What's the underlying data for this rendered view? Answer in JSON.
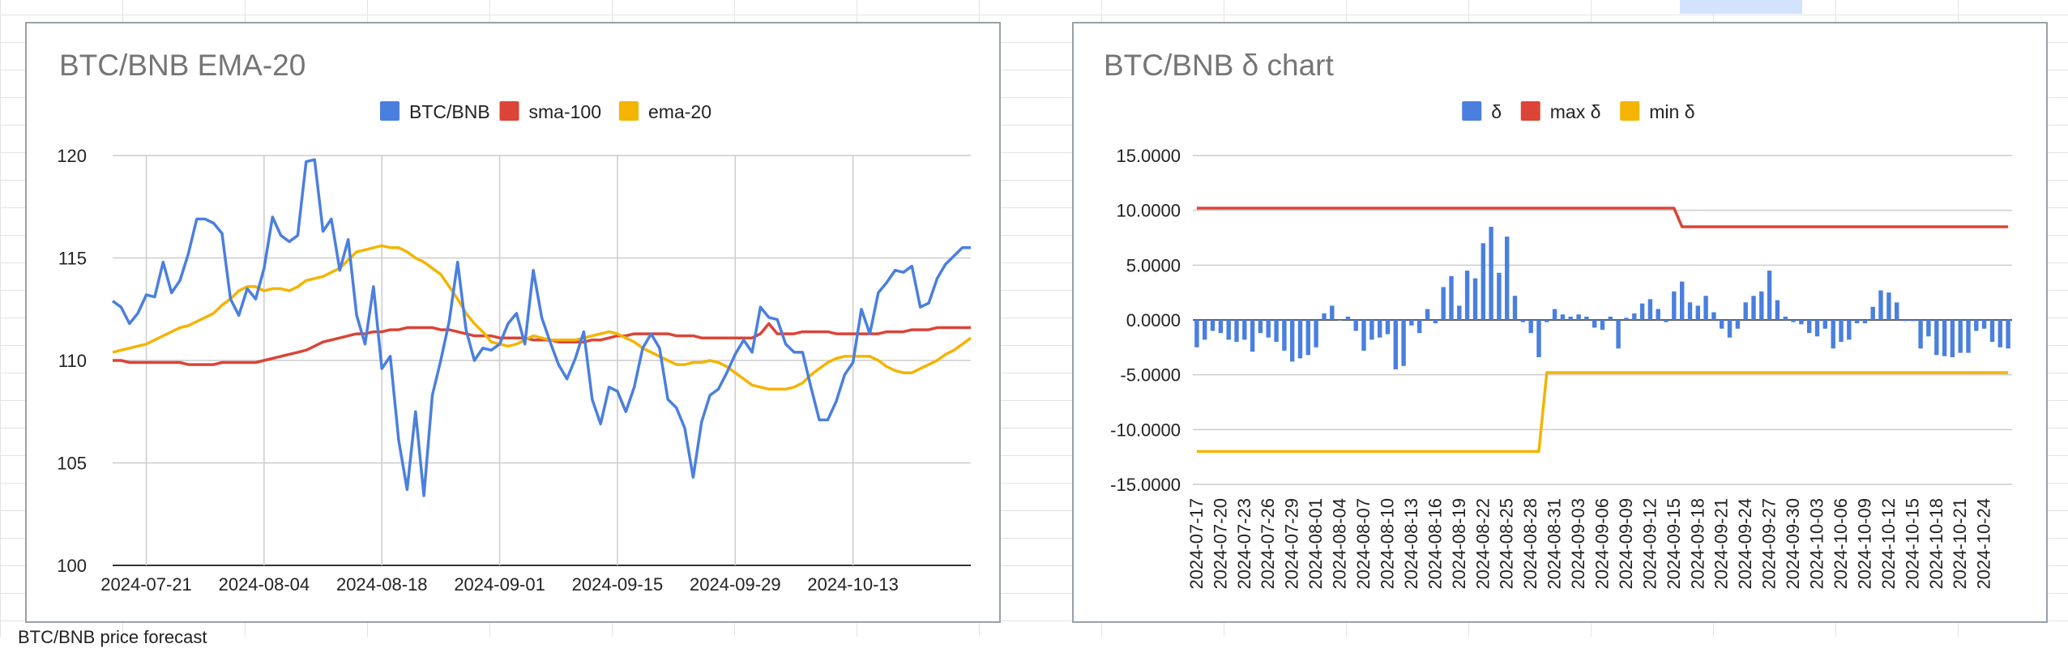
{
  "chart_data": [
    {
      "type": "line",
      "title": "BTC/BNB EMA-20",
      "xlabel": "",
      "ylabel": "",
      "ylim": [
        100,
        120
      ],
      "yticks": [
        "100",
        "105",
        "110",
        "115",
        "120"
      ],
      "x_tick_labels": [
        "2024-07-21",
        "2024-08-04",
        "2024-08-18",
        "2024-09-01",
        "2024-09-15",
        "2024-09-29",
        "2024-10-13"
      ],
      "x": [
        "2024-07-17",
        "2024-07-18",
        "2024-07-19",
        "2024-07-20",
        "2024-07-21",
        "2024-07-22",
        "2024-07-23",
        "2024-07-24",
        "2024-07-25",
        "2024-07-26",
        "2024-07-27",
        "2024-07-28",
        "2024-07-29",
        "2024-07-30",
        "2024-07-31",
        "2024-08-01",
        "2024-08-02",
        "2024-08-03",
        "2024-08-04",
        "2024-08-05",
        "2024-08-06",
        "2024-08-07",
        "2024-08-08",
        "2024-08-09",
        "2024-08-10",
        "2024-08-11",
        "2024-08-12",
        "2024-08-13",
        "2024-08-14",
        "2024-08-15",
        "2024-08-16",
        "2024-08-17",
        "2024-08-18",
        "2024-08-19",
        "2024-08-20",
        "2024-08-21",
        "2024-08-22",
        "2024-08-23",
        "2024-08-24",
        "2024-08-25",
        "2024-08-26",
        "2024-08-27",
        "2024-08-28",
        "2024-08-29",
        "2024-08-30",
        "2024-08-31",
        "2024-09-01",
        "2024-09-02",
        "2024-09-03",
        "2024-09-04",
        "2024-09-05",
        "2024-09-06",
        "2024-09-07",
        "2024-09-08",
        "2024-09-09",
        "2024-09-10",
        "2024-09-11",
        "2024-09-12",
        "2024-09-13",
        "2024-09-14",
        "2024-09-15",
        "2024-09-16",
        "2024-09-17",
        "2024-09-18",
        "2024-09-19",
        "2024-09-20",
        "2024-09-21",
        "2024-09-22",
        "2024-09-23",
        "2024-09-24",
        "2024-09-25",
        "2024-09-26",
        "2024-09-27",
        "2024-09-28",
        "2024-09-29",
        "2024-09-30",
        "2024-10-01",
        "2024-10-02",
        "2024-10-03",
        "2024-10-04",
        "2024-10-05",
        "2024-10-06",
        "2024-10-07",
        "2024-10-08",
        "2024-10-09",
        "2024-10-10",
        "2024-10-11",
        "2024-10-12",
        "2024-10-13",
        "2024-10-14",
        "2024-10-15",
        "2024-10-16",
        "2024-10-17",
        "2024-10-18",
        "2024-10-19",
        "2024-10-20",
        "2024-10-21",
        "2024-10-22",
        "2024-10-23",
        "2024-10-24",
        "2024-10-25",
        "2024-10-26",
        "2024-10-27"
      ],
      "series": [
        {
          "name": "BTC/BNB",
          "color": "#4a7fe0",
          "values": [
            112.9,
            112.6,
            111.8,
            112.3,
            113.2,
            113.1,
            114.8,
            113.3,
            113.9,
            115.2,
            116.9,
            116.9,
            116.7,
            116.2,
            113.0,
            112.2,
            113.5,
            113.0,
            114.5,
            117.0,
            116.1,
            115.8,
            116.1,
            119.7,
            119.8,
            116.3,
            116.9,
            114.4,
            115.9,
            112.2,
            110.8,
            113.6,
            109.6,
            110.2,
            106.1,
            103.7,
            107.5,
            103.4,
            108.3,
            110.0,
            111.9,
            114.8,
            111.5,
            110.0,
            110.6,
            110.5,
            110.8,
            111.8,
            112.3,
            110.8,
            114.4,
            112.1,
            110.9,
            109.8,
            109.1,
            110.1,
            111.4,
            108.1,
            106.9,
            108.7,
            108.5,
            107.5,
            108.7,
            110.6,
            111.3,
            110.6,
            108.1,
            107.7,
            106.7,
            104.3,
            107.0,
            108.3,
            108.6,
            109.4,
            110.3,
            111.0,
            110.4,
            112.6,
            112.1,
            112.0,
            110.8,
            110.4,
            110.4,
            108.7,
            107.1,
            107.1,
            108.0,
            109.3,
            109.9,
            112.5,
            111.3,
            113.3,
            113.8,
            114.4,
            114.3,
            114.6,
            112.6,
            112.8,
            114.0,
            114.7,
            115.1,
            115.5,
            115.5
          ]
        },
        {
          "name": "sma-100",
          "color": "#db4437",
          "values": [
            110.0,
            110.0,
            109.9,
            109.9,
            109.9,
            109.9,
            109.9,
            109.9,
            109.9,
            109.8,
            109.8,
            109.8,
            109.8,
            109.9,
            109.9,
            109.9,
            109.9,
            109.9,
            110.0,
            110.1,
            110.2,
            110.3,
            110.4,
            110.5,
            110.7,
            110.9,
            111.0,
            111.1,
            111.2,
            111.3,
            111.3,
            111.4,
            111.4,
            111.5,
            111.5,
            111.6,
            111.6,
            111.6,
            111.6,
            111.5,
            111.5,
            111.4,
            111.3,
            111.2,
            111.2,
            111.2,
            111.1,
            111.1,
            111.1,
            111.1,
            111.0,
            111.0,
            111.0,
            110.9,
            110.9,
            110.9,
            110.9,
            111.0,
            111.0,
            111.1,
            111.2,
            111.2,
            111.3,
            111.3,
            111.3,
            111.3,
            111.3,
            111.2,
            111.2,
            111.2,
            111.1,
            111.1,
            111.1,
            111.1,
            111.1,
            111.1,
            111.1,
            111.3,
            111.8,
            111.3,
            111.3,
            111.3,
            111.4,
            111.4,
            111.4,
            111.4,
            111.3,
            111.3,
            111.3,
            111.3,
            111.3,
            111.3,
            111.4,
            111.4,
            111.4,
            111.5,
            111.5,
            111.5,
            111.6,
            111.6,
            111.6,
            111.6,
            111.6
          ]
        },
        {
          "name": "ema-20",
          "color": "#f4b400",
          "values": [
            110.4,
            110.5,
            110.6,
            110.7,
            110.8,
            111.0,
            111.2,
            111.4,
            111.6,
            111.7,
            111.9,
            112.1,
            112.3,
            112.7,
            113.0,
            113.4,
            113.6,
            113.6,
            113.4,
            113.5,
            113.5,
            113.4,
            113.6,
            113.9,
            114.0,
            114.1,
            114.3,
            114.5,
            114.9,
            115.3,
            115.4,
            115.5,
            115.6,
            115.5,
            115.5,
            115.3,
            115.0,
            114.8,
            114.5,
            114.2,
            113.6,
            113.0,
            112.3,
            111.8,
            111.4,
            110.9,
            110.8,
            110.7,
            110.8,
            111.0,
            111.2,
            111.1,
            111.0,
            111.0,
            111.0,
            111.0,
            111.1,
            111.2,
            111.3,
            111.4,
            111.3,
            111.1,
            110.9,
            110.6,
            110.4,
            110.2,
            110.0,
            109.8,
            109.8,
            109.9,
            109.9,
            110.0,
            109.9,
            109.7,
            109.4,
            109.1,
            108.8,
            108.7,
            108.6,
            108.6,
            108.6,
            108.7,
            108.9,
            109.3,
            109.6,
            109.9,
            110.1,
            110.2,
            110.2,
            110.2,
            110.2,
            110.0,
            109.7,
            109.5,
            109.4,
            109.4,
            109.6,
            109.8,
            110.0,
            110.3,
            110.5,
            110.8,
            111.1
          ]
        }
      ],
      "legend_position": "top-center",
      "grid": true
    },
    {
      "type": "bar",
      "title": "BTC/BNB δ chart",
      "xlabel": "",
      "ylabel": "",
      "ylim": [
        -15,
        15
      ],
      "yticks": [
        "-15.0000",
        "-10.0000",
        "-5.0000",
        "0.0000",
        "5.0000",
        "10.0000",
        "15.0000"
      ],
      "categories": [
        "2024-07-17",
        "2024-07-18",
        "2024-07-19",
        "2024-07-20",
        "2024-07-21",
        "2024-07-22",
        "2024-07-23",
        "2024-07-24",
        "2024-07-25",
        "2024-07-26",
        "2024-07-27",
        "2024-07-28",
        "2024-07-29",
        "2024-07-30",
        "2024-07-31",
        "2024-08-01",
        "2024-08-02",
        "2024-08-03",
        "2024-08-04",
        "2024-08-05",
        "2024-08-06",
        "2024-08-07",
        "2024-08-08",
        "2024-08-09",
        "2024-08-10",
        "2024-08-11",
        "2024-08-12",
        "2024-08-13",
        "2024-08-14",
        "2024-08-15",
        "2024-08-16",
        "2024-08-17",
        "2024-08-18",
        "2024-08-19",
        "2024-08-20",
        "2024-08-21",
        "2024-08-22",
        "2024-08-23",
        "2024-08-24",
        "2024-08-25",
        "2024-08-26",
        "2024-08-27",
        "2024-08-28",
        "2024-08-29",
        "2024-08-30",
        "2024-08-31",
        "2024-09-01",
        "2024-09-02",
        "2024-09-03",
        "2024-09-04",
        "2024-09-05",
        "2024-09-06",
        "2024-09-07",
        "2024-09-08",
        "2024-09-09",
        "2024-09-10",
        "2024-09-11",
        "2024-09-12",
        "2024-09-13",
        "2024-09-14",
        "2024-09-15",
        "2024-09-16",
        "2024-09-17",
        "2024-09-18",
        "2024-09-19",
        "2024-09-20",
        "2024-09-21",
        "2024-09-22",
        "2024-09-23",
        "2024-09-24",
        "2024-09-25",
        "2024-09-26",
        "2024-09-27",
        "2024-09-28",
        "2024-09-29",
        "2024-09-30",
        "2024-10-01",
        "2024-10-02",
        "2024-10-03",
        "2024-10-04",
        "2024-10-05",
        "2024-10-06",
        "2024-10-07",
        "2024-10-08",
        "2024-10-09",
        "2024-10-10",
        "2024-10-11",
        "2024-10-12",
        "2024-10-13",
        "2024-10-14",
        "2024-10-15",
        "2024-10-16",
        "2024-10-17",
        "2024-10-18",
        "2024-10-19",
        "2024-10-20",
        "2024-10-21",
        "2024-10-22",
        "2024-10-23",
        "2024-10-24",
        "2024-10-25",
        "2024-10-26",
        "2024-10-27"
      ],
      "x_tick_labels": [
        "2024-07-17",
        "2024-07-20",
        "2024-07-23",
        "2024-07-26",
        "2024-07-29",
        "2024-08-01",
        "2024-08-04",
        "2024-08-07",
        "2024-08-10",
        "2024-08-13",
        "2024-08-16",
        "2024-08-19",
        "2024-08-22",
        "2024-08-25",
        "2024-08-28",
        "2024-08-31",
        "2024-09-03",
        "2024-09-06",
        "2024-09-09",
        "2024-09-12",
        "2024-09-15",
        "2024-09-18",
        "2024-09-21",
        "2024-09-24",
        "2024-09-27",
        "2024-09-30",
        "2024-10-03",
        "2024-10-06",
        "2024-10-09",
        "2024-10-12",
        "2024-10-15",
        "2024-10-18",
        "2024-10-21",
        "2024-10-24"
      ],
      "series": [
        {
          "name": "δ",
          "color": "#4a7fe0",
          "values": [
            -2.5,
            -1.8,
            -1.0,
            -1.2,
            -1.8,
            -2.0,
            -1.8,
            -2.9,
            -1.2,
            -1.6,
            -2.0,
            -2.8,
            -3.8,
            -3.5,
            -3.2,
            -2.5,
            0.6,
            1.3,
            0.0,
            0.3,
            -1.0,
            -2.8,
            -1.8,
            -1.6,
            -1.3,
            -4.5,
            -4.2,
            -0.5,
            -1.2,
            1.0,
            -0.3,
            3.0,
            4.0,
            1.3,
            4.5,
            3.8,
            7.0,
            8.5,
            4.3,
            7.6,
            2.2,
            -0.2,
            -1.2,
            -3.4,
            -0.2,
            1.0,
            0.5,
            0.3,
            0.5,
            0.3,
            -0.7,
            -0.9,
            0.3,
            -2.6,
            0.2,
            0.6,
            1.5,
            1.9,
            1.0,
            -0.2,
            2.6,
            3.5,
            1.6,
            1.3,
            2.2,
            0.7,
            -0.8,
            -1.6,
            -0.8,
            1.6,
            2.2,
            2.6,
            4.5,
            1.8,
            0.3,
            -0.2,
            -0.4,
            -1.2,
            -1.5,
            -0.8,
            -2.6,
            -2.0,
            -1.8,
            -0.3,
            -0.3,
            1.2,
            2.7,
            2.5,
            1.6,
            -0.1,
            -0.1,
            -2.6,
            -1.5,
            -3.2,
            -3.3,
            -3.4,
            -3.0,
            -3.0,
            -1.0,
            -0.8,
            -2.0,
            -2.5,
            -2.6
          ]
        },
        {
          "name": "max δ",
          "color": "#db4437",
          "values": [
            10.2,
            10.2,
            10.2,
            10.2,
            10.2,
            10.2,
            10.2,
            10.2,
            10.2,
            10.2,
            10.2,
            10.2,
            10.2,
            10.2,
            10.2,
            10.2,
            10.2,
            10.2,
            10.2,
            10.2,
            10.2,
            10.2,
            10.2,
            10.2,
            10.2,
            10.2,
            10.2,
            10.2,
            10.2,
            10.2,
            10.2,
            10.2,
            10.2,
            10.2,
            10.2,
            10.2,
            10.2,
            10.2,
            10.2,
            10.2,
            10.2,
            10.2,
            10.2,
            10.2,
            10.2,
            10.2,
            10.2,
            10.2,
            10.2,
            10.2,
            10.2,
            10.2,
            10.2,
            10.2,
            10.2,
            10.2,
            10.2,
            10.2,
            10.2,
            10.2,
            10.2,
            8.5,
            8.5,
            8.5,
            8.5,
            8.5,
            8.5,
            8.5,
            8.5,
            8.5,
            8.5,
            8.5,
            8.5,
            8.5,
            8.5,
            8.5,
            8.5,
            8.5,
            8.5,
            8.5,
            8.5,
            8.5,
            8.5,
            8.5,
            8.5,
            8.5,
            8.5,
            8.5,
            8.5,
            8.5,
            8.5,
            8.5,
            8.5,
            8.5,
            8.5,
            8.5,
            8.5,
            8.5,
            8.5,
            8.5,
            8.5,
            8.5,
            8.5
          ]
        },
        {
          "name": "min δ",
          "color": "#f4b400",
          "values": [
            -12.0,
            -12.0,
            -12.0,
            -12.0,
            -12.0,
            -12.0,
            -12.0,
            -12.0,
            -12.0,
            -12.0,
            -12.0,
            -12.0,
            -12.0,
            -12.0,
            -12.0,
            -12.0,
            -12.0,
            -12.0,
            -12.0,
            -12.0,
            -12.0,
            -12.0,
            -12.0,
            -12.0,
            -12.0,
            -12.0,
            -12.0,
            -12.0,
            -12.0,
            -12.0,
            -12.0,
            -12.0,
            -12.0,
            -12.0,
            -12.0,
            -12.0,
            -12.0,
            -12.0,
            -12.0,
            -12.0,
            -12.0,
            -12.0,
            -12.0,
            -12.0,
            -4.8,
            -4.8,
            -4.8,
            -4.8,
            -4.8,
            -4.8,
            -4.8,
            -4.8,
            -4.8,
            -4.8,
            -4.8,
            -4.8,
            -4.8,
            -4.8,
            -4.8,
            -4.8,
            -4.8,
            -4.8,
            -4.8,
            -4.8,
            -4.8,
            -4.8,
            -4.8,
            -4.8,
            -4.8,
            -4.8,
            -4.8,
            -4.8,
            -4.8,
            -4.8,
            -4.8,
            -4.8,
            -4.8,
            -4.8,
            -4.8,
            -4.8,
            -4.8,
            -4.8,
            -4.8,
            -4.8,
            -4.8,
            -4.8,
            -4.8,
            -4.8,
            -4.8,
            -4.8,
            -4.8,
            -4.8,
            -4.8,
            -4.8,
            -4.8,
            -4.8,
            -4.8,
            -4.8,
            -4.8,
            -4.8,
            -4.8,
            -4.8,
            -4.8
          ]
        }
      ],
      "legend_position": "top-center",
      "grid": true
    }
  ],
  "below_text": "BTC/BNB price forecast"
}
